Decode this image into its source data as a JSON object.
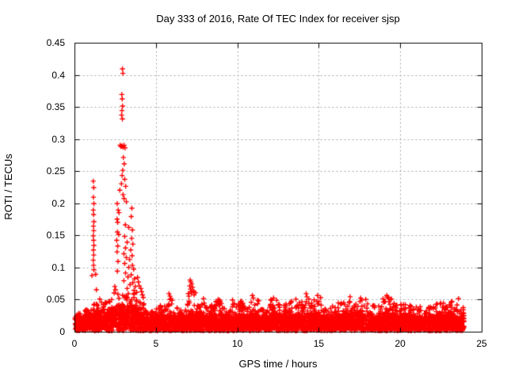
{
  "page": {
    "background": "#ffffff",
    "text_color": "#000000"
  },
  "chart_data": {
    "type": "scatter",
    "title": "Day 333 of 2016, Rate Of TEC Index for receiver sjsp",
    "xlabel": "GPS time / hours",
    "ylabel": "ROTI / TECUs",
    "xlim": [
      0,
      25
    ],
    "ylim": [
      0,
      0.45
    ],
    "xticks": [
      {
        "value": 0,
        "label": "0"
      },
      {
        "value": 5,
        "label": "5"
      },
      {
        "value": 10,
        "label": "10"
      },
      {
        "value": 15,
        "label": "15"
      },
      {
        "value": 20,
        "label": "20"
      },
      {
        "value": 25,
        "label": "25"
      }
    ],
    "yticks": [
      {
        "value": 0,
        "label": "0"
      },
      {
        "value": 0.05,
        "label": "0.05"
      },
      {
        "value": 0.1,
        "label": "0.1"
      },
      {
        "value": 0.15,
        "label": "0.15"
      },
      {
        "value": 0.2,
        "label": "0.2"
      },
      {
        "value": 0.25,
        "label": "0.25"
      },
      {
        "value": 0.3,
        "label": "0.3"
      },
      {
        "value": 0.35,
        "label": "0.35"
      },
      {
        "value": 0.4,
        "label": "0.4"
      },
      {
        "value": 0.45,
        "label": "0.45"
      }
    ],
    "grid": {
      "show": true,
      "style": "dashed",
      "color": "#a6a6a6"
    },
    "axis_color": "#000000",
    "legend": {
      "show": false
    },
    "marker": {
      "shape": "plus",
      "color": "#ff0000",
      "size": 7
    },
    "series": [
      {
        "name": "ROTI",
        "spike_points": [
          [
            1.13,
            0.235
          ],
          [
            1.16,
            0.225
          ],
          [
            1.14,
            0.21
          ],
          [
            1.17,
            0.2
          ],
          [
            1.13,
            0.19
          ],
          [
            1.15,
            0.183
          ],
          [
            1.17,
            0.172
          ],
          [
            1.14,
            0.165
          ],
          [
            1.16,
            0.158
          ],
          [
            1.13,
            0.15
          ],
          [
            1.15,
            0.143
          ],
          [
            1.17,
            0.135
          ],
          [
            1.14,
            0.128
          ],
          [
            1.16,
            0.12
          ],
          [
            1.13,
            0.112
          ],
          [
            1.15,
            0.104
          ],
          [
            1.17,
            0.097
          ],
          [
            1.05,
            0.088
          ],
          [
            1.28,
            0.09
          ],
          [
            1.32,
            0.066
          ],
          [
            2.92,
            0.41
          ],
          [
            2.95,
            0.403
          ],
          [
            2.88,
            0.37
          ],
          [
            2.91,
            0.363
          ],
          [
            2.93,
            0.352
          ],
          [
            2.89,
            0.345
          ],
          [
            2.87,
            0.338
          ],
          [
            2.92,
            0.332
          ],
          [
            2.78,
            0.291
          ],
          [
            2.84,
            0.289
          ],
          [
            2.9,
            0.29
          ],
          [
            2.96,
            0.288
          ],
          [
            3.02,
            0.291
          ],
          [
            3.08,
            0.287
          ],
          [
            2.98,
            0.272
          ],
          [
            3.03,
            0.262
          ],
          [
            2.94,
            0.252
          ],
          [
            2.9,
            0.244
          ],
          [
            3.06,
            0.238
          ],
          [
            2.86,
            0.231
          ],
          [
            3.12,
            0.227
          ],
          [
            2.76,
            0.221
          ],
          [
            2.96,
            0.214
          ],
          [
            3.02,
            0.208
          ],
          [
            3.16,
            0.203
          ],
          [
            2.6,
            0.2
          ],
          [
            3.5,
            0.193
          ],
          [
            2.66,
            0.19
          ],
          [
            2.71,
            0.186
          ],
          [
            3.46,
            0.18
          ],
          [
            2.59,
            0.176
          ],
          [
            2.63,
            0.171
          ],
          [
            3.1,
            0.167
          ],
          [
            3.31,
            0.163
          ],
          [
            3.53,
            0.159
          ],
          [
            2.61,
            0.156
          ],
          [
            2.69,
            0.152
          ],
          [
            3.06,
            0.149
          ],
          [
            3.49,
            0.146
          ],
          [
            2.57,
            0.143
          ],
          [
            3.21,
            0.14
          ],
          [
            3.56,
            0.137
          ],
          [
            2.63,
            0.134
          ],
          [
            3.11,
            0.131
          ],
          [
            3.43,
            0.128
          ],
          [
            2.59,
            0.125
          ],
          [
            3.01,
            0.122
          ],
          [
            3.51,
            0.119
          ],
          [
            3.16,
            0.116
          ],
          [
            3.36,
            0.113
          ],
          [
            2.65,
            0.11
          ],
          [
            3.06,
            0.107
          ],
          [
            3.53,
            0.104
          ],
          [
            3.31,
            0.101
          ],
          [
            3.61,
            0.098
          ],
          [
            2.61,
            0.095
          ],
          [
            3.11,
            0.092
          ],
          [
            3.46,
            0.089
          ],
          [
            3.26,
            0.086
          ],
          [
            3.66,
            0.083
          ],
          [
            3.01,
            0.08
          ],
          [
            3.56,
            0.077
          ],
          [
            3.39,
            0.074
          ],
          [
            3.71,
            0.071
          ],
          [
            3.21,
            0.068
          ],
          [
            3.63,
            0.065
          ],
          [
            3.85,
            0.085
          ],
          [
            3.9,
            0.078
          ],
          [
            3.95,
            0.072
          ],
          [
            4.05,
            0.068
          ],
          [
            4.1,
            0.063
          ],
          [
            4.15,
            0.058
          ],
          [
            4.2,
            0.054
          ],
          [
            3.8,
            0.062
          ],
          [
            2.45,
            0.071
          ],
          [
            2.5,
            0.066
          ],
          [
            2.41,
            0.061
          ],
          [
            5.78,
            0.06
          ],
          [
            5.84,
            0.056
          ],
          [
            5.9,
            0.052
          ],
          [
            7.08,
            0.081
          ],
          [
            7.12,
            0.078
          ],
          [
            7.17,
            0.075
          ],
          [
            7.05,
            0.072
          ],
          [
            7.22,
            0.07
          ],
          [
            7.1,
            0.067
          ],
          [
            7.27,
            0.064
          ],
          [
            7.15,
            0.061
          ],
          [
            7.32,
            0.058
          ],
          [
            7.0,
            0.056
          ],
          [
            7.9,
            0.052
          ],
          [
            8.8,
            0.051
          ],
          [
            9.68,
            0.05
          ],
          [
            10.9,
            0.057
          ],
          [
            10.95,
            0.053
          ],
          [
            12.2,
            0.053
          ],
          [
            13.3,
            0.048
          ],
          [
            14.2,
            0.06
          ],
          [
            14.25,
            0.055
          ],
          [
            14.9,
            0.057
          ],
          [
            16.9,
            0.055
          ],
          [
            17.55,
            0.053
          ],
          [
            19.15,
            0.057
          ],
          [
            19.25,
            0.054
          ],
          [
            19.35,
            0.051
          ],
          [
            23.55,
            0.052
          ]
        ],
        "baseline_band": {
          "note": "dense noise band of plus markers along the x-axis from 0 to 23.9 h",
          "y_floor": 0.002,
          "points_per_hour": 190,
          "seed": 333,
          "envelope": [
            [
              0.0,
              0.5,
              0.022,
              0.034
            ],
            [
              0.5,
              1.0,
              0.024,
              0.036
            ],
            [
              1.0,
              1.45,
              0.026,
              0.045
            ],
            [
              1.45,
              1.8,
              0.03,
              0.058
            ],
            [
              1.8,
              2.2,
              0.026,
              0.048
            ],
            [
              2.2,
              2.5,
              0.03,
              0.052
            ],
            [
              2.5,
              3.2,
              0.034,
              0.06
            ],
            [
              3.2,
              3.8,
              0.036,
              0.062
            ],
            [
              3.8,
              4.3,
              0.028,
              0.05
            ],
            [
              4.3,
              5.0,
              0.022,
              0.038
            ],
            [
              5.0,
              5.6,
              0.024,
              0.042
            ],
            [
              5.6,
              6.1,
              0.026,
              0.055
            ],
            [
              6.1,
              6.9,
              0.022,
              0.038
            ],
            [
              6.9,
              7.5,
              0.028,
              0.065
            ],
            [
              7.5,
              8.3,
              0.024,
              0.048
            ],
            [
              8.3,
              9.0,
              0.026,
              0.05
            ],
            [
              9.0,
              9.9,
              0.022,
              0.045
            ],
            [
              9.9,
              10.7,
              0.024,
              0.05
            ],
            [
              10.7,
              11.3,
              0.026,
              0.052
            ],
            [
              11.3,
              12.0,
              0.022,
              0.042
            ],
            [
              12.0,
              12.7,
              0.026,
              0.052
            ],
            [
              12.7,
              13.5,
              0.024,
              0.048
            ],
            [
              13.5,
              14.4,
              0.026,
              0.052
            ],
            [
              14.4,
              15.1,
              0.026,
              0.055
            ],
            [
              15.1,
              16.1,
              0.022,
              0.042
            ],
            [
              16.1,
              17.1,
              0.026,
              0.05
            ],
            [
              17.1,
              18.0,
              0.026,
              0.052
            ],
            [
              18.0,
              18.9,
              0.022,
              0.042
            ],
            [
              18.9,
              19.7,
              0.028,
              0.058
            ],
            [
              19.7,
              20.6,
              0.024,
              0.046
            ],
            [
              20.6,
              21.6,
              0.022,
              0.04
            ],
            [
              21.6,
              22.4,
              0.024,
              0.044
            ],
            [
              22.4,
              23.2,
              0.026,
              0.05
            ],
            [
              23.2,
              23.9,
              0.022,
              0.044
            ]
          ]
        }
      }
    ]
  }
}
